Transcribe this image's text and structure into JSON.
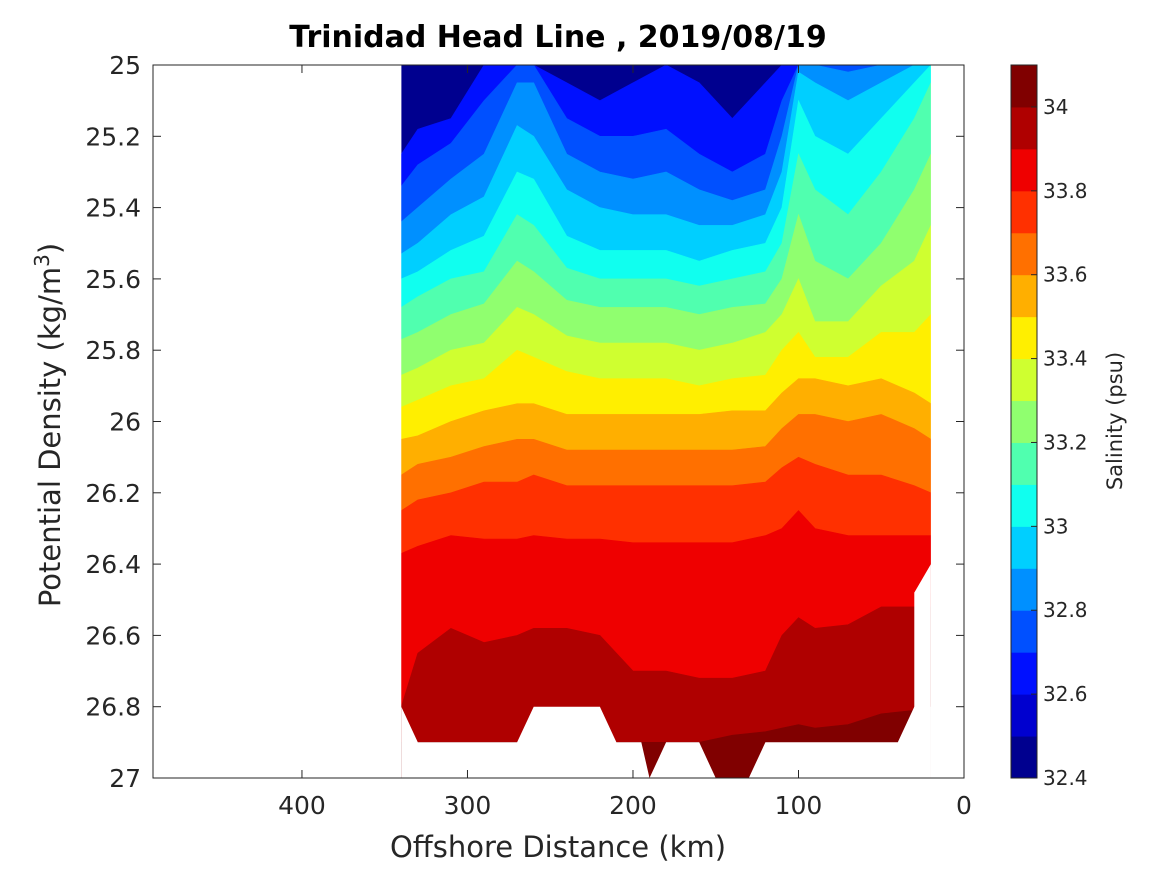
{
  "chart_data": {
    "type": "contour",
    "title": "Trinidad Head Line , 2019/08/19",
    "xlabel": "Offshore Distance (km)",
    "ylabel_main": "Potential Density (kg/m",
    "ylabel_sup": "3",
    "ylabel_end": ")",
    "colorbar_label": "Salinity (psu)",
    "x_axis": {
      "range": [
        490,
        0
      ],
      "reversed": true,
      "ticks": [
        "400",
        "300",
        "200",
        "100",
        "0"
      ],
      "tick_values": [
        400,
        300,
        200,
        100,
        0
      ]
    },
    "y_axis": {
      "range": [
        25,
        27
      ],
      "reversed": true,
      "ticks": [
        "25",
        "25.2",
        "25.4",
        "25.6",
        "25.8",
        "26",
        "26.2",
        "26.4",
        "26.6",
        "26.8",
        "27"
      ],
      "tick_values": [
        25,
        25.2,
        25.4,
        25.6,
        25.8,
        26,
        26.2,
        26.4,
        26.6,
        26.8,
        27
      ]
    },
    "colorbar": {
      "range": [
        32.4,
        34.1
      ],
      "ticks": [
        "32.4",
        "32.6",
        "32.8",
        "33",
        "33.2",
        "33.4",
        "33.6",
        "33.8",
        "34"
      ],
      "tick_values": [
        32.4,
        32.6,
        32.8,
        33.0,
        33.2,
        33.4,
        33.6,
        33.8,
        34.0
      ],
      "levels": [
        32.4,
        32.5,
        32.6,
        32.7,
        32.8,
        32.9,
        33.0,
        33.1,
        33.2,
        33.3,
        33.4,
        33.5,
        33.6,
        33.7,
        33.8,
        33.9,
        34.0,
        34.1
      ],
      "colors": [
        "#00008F",
        "#0000CF",
        "#0010FF",
        "#0050FF",
        "#0090FF",
        "#00CFFF",
        "#10FFEF",
        "#50FFAF",
        "#90FF6F",
        "#CFFF30",
        "#FFEF00",
        "#FFAF00",
        "#FF7000",
        "#FF3000",
        "#EF0000",
        "#AF0000",
        "#800000"
      ]
    },
    "data_extent": {
      "x": [
        340,
        20
      ],
      "y": [
        25,
        27
      ]
    },
    "contour_boundaries": {
      "x_km": [
        340,
        330,
        310,
        290,
        270,
        260,
        240,
        220,
        200,
        180,
        160,
        140,
        120,
        110,
        100,
        90,
        70,
        50,
        30,
        20
      ],
      "levels": [
        {
          "value": 32.7,
          "y": [
            25.25,
            25.18,
            25.15,
            25.0,
            25.0,
            25.0,
            25.05,
            25.1,
            25.05,
            25.0,
            25.05,
            25.15,
            25.05,
            25.0,
            25.0,
            25.0,
            25.0,
            25.0,
            25.0,
            25.0
          ]
        },
        {
          "value": 32.8,
          "y": [
            25.34,
            25.28,
            25.22,
            25.1,
            25.0,
            25.0,
            25.15,
            25.2,
            25.2,
            25.18,
            25.25,
            25.3,
            25.25,
            25.1,
            25.0,
            25.0,
            25.0,
            25.0,
            25.0,
            25.0
          ]
        },
        {
          "value": 32.9,
          "y": [
            25.44,
            25.4,
            25.32,
            25.25,
            25.05,
            25.05,
            25.25,
            25.3,
            25.32,
            25.3,
            25.35,
            25.38,
            25.35,
            25.2,
            25.0,
            25.0,
            25.02,
            25.0,
            25.0,
            25.0
          ]
        },
        {
          "value": 33.0,
          "y": [
            25.53,
            25.5,
            25.42,
            25.37,
            25.17,
            25.2,
            25.35,
            25.4,
            25.42,
            25.42,
            25.45,
            25.45,
            25.42,
            25.3,
            25.02,
            25.05,
            25.1,
            25.05,
            25.0,
            25.0
          ]
        },
        {
          "value": 33.1,
          "y": [
            25.6,
            25.58,
            25.52,
            25.48,
            25.3,
            25.32,
            25.48,
            25.52,
            25.52,
            25.52,
            25.55,
            25.52,
            25.5,
            25.4,
            25.1,
            25.2,
            25.25,
            25.15,
            25.05,
            25.0
          ]
        },
        {
          "value": 33.2,
          "y": [
            25.68,
            25.65,
            25.6,
            25.58,
            25.42,
            25.45,
            25.57,
            25.6,
            25.6,
            25.6,
            25.62,
            25.6,
            25.58,
            25.5,
            25.25,
            25.35,
            25.42,
            25.3,
            25.15,
            25.05
          ]
        },
        {
          "value": 33.3,
          "y": [
            25.77,
            25.75,
            25.7,
            25.67,
            25.55,
            25.58,
            25.66,
            25.68,
            25.68,
            25.68,
            25.7,
            25.68,
            25.67,
            25.6,
            25.42,
            25.55,
            25.6,
            25.5,
            25.35,
            25.25
          ]
        },
        {
          "value": 33.4,
          "y": [
            25.87,
            25.85,
            25.8,
            25.78,
            25.68,
            25.7,
            25.76,
            25.78,
            25.78,
            25.78,
            25.8,
            25.78,
            25.75,
            25.7,
            25.6,
            25.72,
            25.72,
            25.62,
            25.55,
            25.45
          ]
        },
        {
          "value": 33.5,
          "y": [
            25.96,
            25.94,
            25.9,
            25.88,
            25.8,
            25.82,
            25.86,
            25.88,
            25.88,
            25.88,
            25.9,
            25.88,
            25.87,
            25.8,
            25.75,
            25.82,
            25.82,
            25.75,
            25.75,
            25.7
          ]
        },
        {
          "value": 33.6,
          "y": [
            26.05,
            26.04,
            26.0,
            25.97,
            25.95,
            25.95,
            25.98,
            25.98,
            25.98,
            25.98,
            25.98,
            25.97,
            25.97,
            25.92,
            25.88,
            25.88,
            25.9,
            25.88,
            25.92,
            25.95
          ]
        },
        {
          "value": 33.7,
          "y": [
            26.15,
            26.12,
            26.1,
            26.07,
            26.05,
            26.05,
            26.08,
            26.08,
            26.08,
            26.08,
            26.08,
            26.08,
            26.07,
            26.02,
            25.98,
            25.98,
            26.0,
            25.98,
            26.02,
            26.05
          ]
        },
        {
          "value": 33.8,
          "y": [
            26.25,
            26.22,
            26.2,
            26.17,
            26.17,
            26.15,
            26.18,
            26.18,
            26.18,
            26.18,
            26.18,
            26.18,
            26.17,
            26.13,
            26.1,
            26.12,
            26.15,
            26.15,
            26.18,
            26.2
          ]
        },
        {
          "value": 33.9,
          "y": [
            26.37,
            26.35,
            26.32,
            26.33,
            26.33,
            26.32,
            26.33,
            26.33,
            26.34,
            26.34,
            26.34,
            26.34,
            26.32,
            26.3,
            26.25,
            26.3,
            26.32,
            26.32,
            26.32,
            26.32
          ]
        },
        {
          "value": 34.0,
          "y": [
            26.8,
            26.65,
            26.58,
            26.62,
            26.6,
            26.58,
            26.58,
            26.6,
            26.7,
            26.7,
            26.72,
            26.72,
            26.7,
            26.6,
            26.55,
            26.58,
            26.57,
            26.52,
            26.52,
            26.52
          ]
        },
        {
          "value": 34.1,
          "y": [
            26.9,
            26.9,
            26.9,
            26.9,
            26.9,
            26.9,
            26.9,
            26.9,
            26.9,
            26.9,
            26.9,
            26.88,
            26.87,
            26.86,
            26.85,
            26.86,
            26.85,
            26.82,
            26.81,
            26.8
          ]
        }
      ]
    }
  }
}
